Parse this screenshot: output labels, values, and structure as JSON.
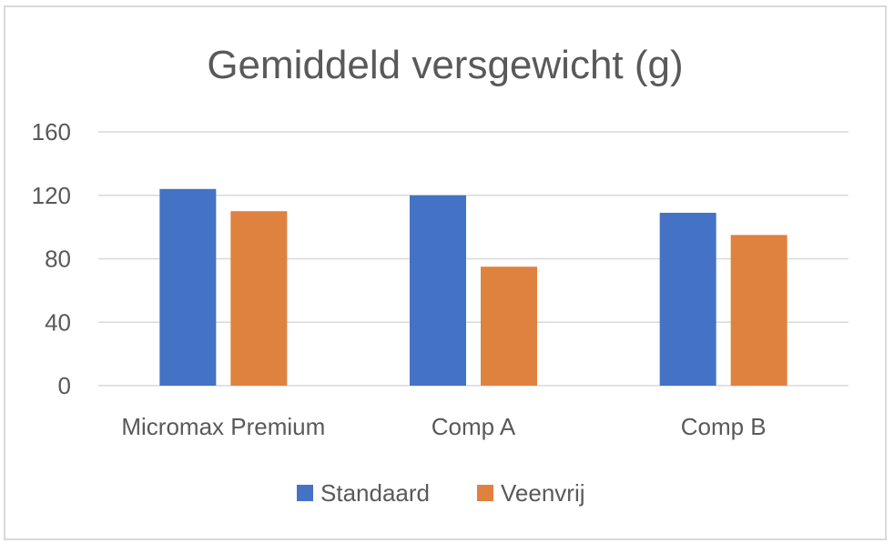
{
  "chart_data": {
    "type": "bar",
    "title": "Gemiddeld versgewicht (g)",
    "xlabel": "",
    "ylabel": "",
    "categories": [
      "Micromax Premium",
      "Comp A",
      "Comp B"
    ],
    "series": [
      {
        "name": "Standaard",
        "color": "#4472c4",
        "values": [
          124,
          120,
          109
        ]
      },
      {
        "name": "Veenvrij",
        "color": "#e0823f",
        "values": [
          110,
          75,
          95
        ]
      }
    ],
    "ylim": [
      0,
      160
    ],
    "yticks": [
      0,
      40,
      80,
      120,
      160
    ],
    "grid": true,
    "legend_position": "bottom"
  }
}
